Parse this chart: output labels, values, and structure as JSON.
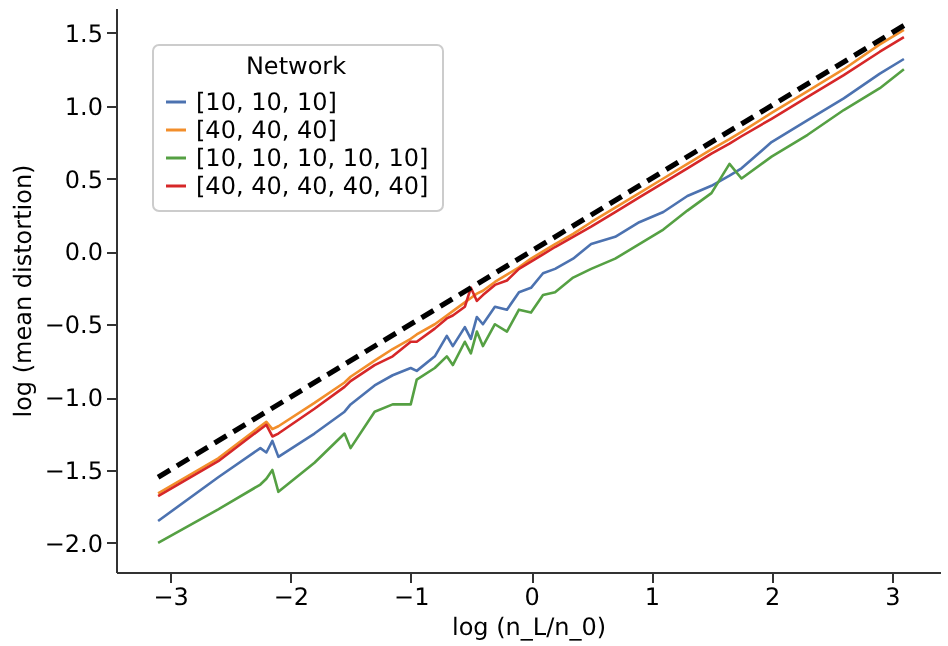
{
  "chart_data": {
    "type": "line",
    "xlabel": "log (n_L/n_0)",
    "ylabel": "log (mean distortion)",
    "legend_title": "Network",
    "legend": "top left",
    "grid": false,
    "x": [
      -3.1,
      -2.6,
      -2.25,
      -2.2,
      -2.15,
      -2.1,
      -1.8,
      -1.55,
      -1.5,
      -1.3,
      -1.15,
      -1.0,
      -0.95,
      -0.8,
      -0.7,
      -0.65,
      -0.55,
      -0.5,
      -0.45,
      -0.4,
      -0.3,
      -0.2,
      -0.1,
      0,
      0.1,
      0.2,
      0.35,
      0.5,
      0.7,
      0.9,
      1.1,
      1.3,
      1.5,
      1.65,
      1.75,
      2.0,
      2.3,
      2.6,
      2.9,
      3.1
    ],
    "xlim": [
      -3.45,
      3.4
    ],
    "ylim": [
      -2.2,
      1.67
    ],
    "xticks": [
      -3,
      -2,
      -1,
      0,
      1,
      2,
      3
    ],
    "yticks": [
      {
        "value": -2,
        "label": "−2.0"
      },
      {
        "value": -1.5,
        "label": "−1.5"
      },
      {
        "value": -1,
        "label": "−1.0"
      },
      {
        "value": -0.5,
        "label": "−0.5"
      },
      {
        "value": 0,
        "label": "0.0"
      },
      {
        "value": 0.5,
        "label": "0.5"
      },
      {
        "value": 1,
        "label": "1.0"
      },
      {
        "value": 1.5,
        "label": "1.5"
      }
    ],
    "series": [
      {
        "name": "[10, 10, 10]",
        "color": "#4c72b0",
        "values": [
          -1.85,
          -1.55,
          -1.35,
          -1.38,
          -1.3,
          -1.41,
          -1.25,
          -1.1,
          -1.05,
          -0.92,
          -0.85,
          -0.8,
          -0.82,
          -0.72,
          -0.58,
          -0.65,
          -0.52,
          -0.6,
          -0.45,
          -0.5,
          -0.38,
          -0.4,
          -0.28,
          -0.25,
          -0.15,
          -0.12,
          -0.05,
          0.05,
          0.1,
          0.2,
          0.27,
          0.38,
          0.45,
          0.52,
          0.57,
          0.75,
          0.9,
          1.05,
          1.22,
          1.32
        ]
      },
      {
        "name": "[40, 40, 40]",
        "color": "#f28e2b",
        "values": [
          -1.66,
          -1.42,
          -1.2,
          -1.17,
          -1.22,
          -1.2,
          -1.04,
          -0.9,
          -0.86,
          -0.75,
          -0.67,
          -0.6,
          -0.57,
          -0.5,
          -0.44,
          -0.41,
          -0.35,
          -0.32,
          -0.29,
          -0.27,
          -0.21,
          -0.16,
          -0.11,
          -0.05,
          0.0,
          0.05,
          0.12,
          0.2,
          0.3,
          0.4,
          0.5,
          0.6,
          0.7,
          0.77,
          0.82,
          0.95,
          1.1,
          1.25,
          1.42,
          1.52
        ]
      },
      {
        "name": "[10, 10, 10, 10, 10]",
        "color": "#55a043",
        "values": [
          -2.0,
          -1.77,
          -1.6,
          -1.56,
          -1.5,
          -1.65,
          -1.45,
          -1.25,
          -1.35,
          -1.1,
          -1.05,
          -1.05,
          -0.88,
          -0.8,
          -0.72,
          -0.78,
          -0.62,
          -0.7,
          -0.55,
          -0.65,
          -0.5,
          -0.55,
          -0.4,
          -0.42,
          -0.3,
          -0.28,
          -0.18,
          -0.12,
          -0.05,
          0.05,
          0.15,
          0.28,
          0.4,
          0.6,
          0.5,
          0.65,
          0.8,
          0.97,
          1.12,
          1.25
        ]
      },
      {
        "name": "[40, 40, 40, 40, 40]",
        "color": "#d62728",
        "values": [
          -1.68,
          -1.44,
          -1.22,
          -1.19,
          -1.27,
          -1.25,
          -1.08,
          -0.93,
          -0.89,
          -0.78,
          -0.72,
          -0.62,
          -0.62,
          -0.53,
          -0.46,
          -0.44,
          -0.38,
          -0.25,
          -0.34,
          -0.3,
          -0.23,
          -0.2,
          -0.12,
          -0.07,
          -0.02,
          0.03,
          0.1,
          0.17,
          0.27,
          0.37,
          0.47,
          0.57,
          0.67,
          0.74,
          0.79,
          0.91,
          1.06,
          1.21,
          1.37,
          1.47
        ]
      },
      {
        "color": "#000000",
        "line_style": "dashed",
        "x": [
          -3.1,
          3.1
        ],
        "values": [
          -1.55,
          1.55
        ]
      }
    ]
  }
}
